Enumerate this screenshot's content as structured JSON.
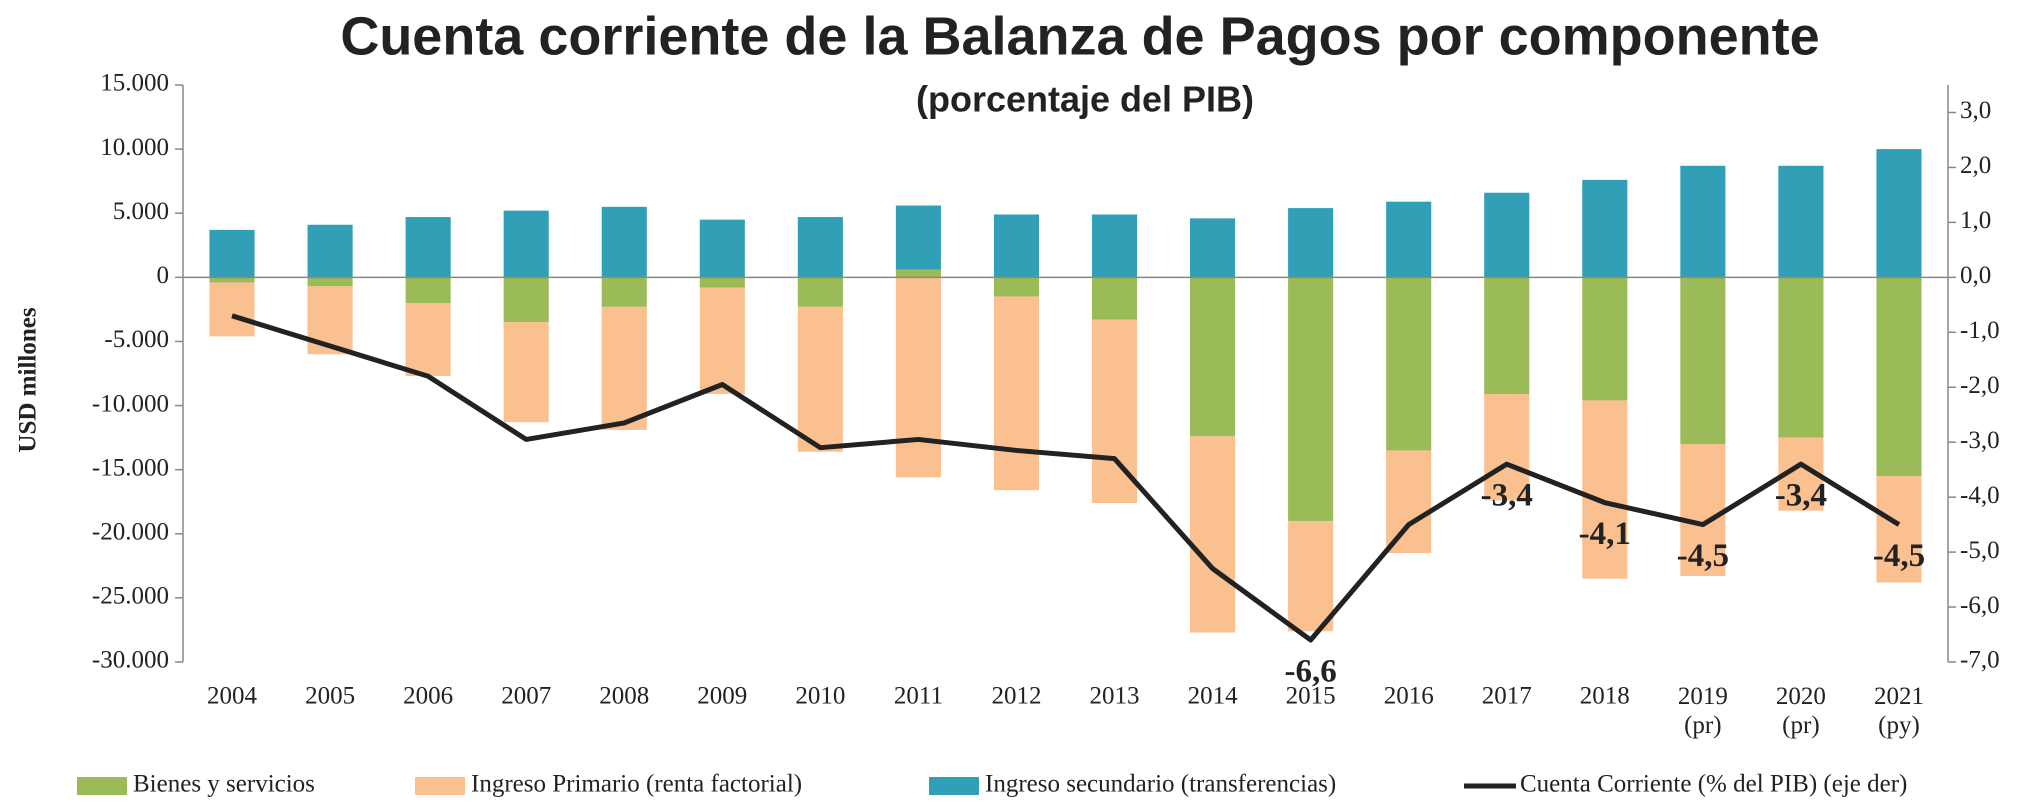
{
  "chart_data": {
    "type": "bar",
    "title": "Cuenta corriente de la Balanza de Pagos por componente",
    "subtitle": "(porcentaje del PIB)",
    "y_label": "USD millones",
    "categories": [
      "2004",
      "2005",
      "2006",
      "2007",
      "2008",
      "2009",
      "2010",
      "2011",
      "2012",
      "2013",
      "2014",
      "2015",
      "2016",
      "2017",
      "2018",
      "2019\n(pr)",
      "2020\n(pr)",
      "2021\n(py)"
    ],
    "stacked": true,
    "series": [
      {
        "name": "Bienes y servicios",
        "color": "#9bbb59",
        "values": [
          -400,
          -700,
          -2000,
          -3500,
          -2300,
          -800,
          -2300,
          600,
          -1500,
          -3300,
          -12400,
          -19000,
          -13500,
          -9100,
          -9600,
          -13000,
          -12500,
          -15500
        ]
      },
      {
        "name": "Ingreso Primario (renta factorial)",
        "color": "#fac090",
        "values": [
          -4200,
          -5300,
          -5700,
          -7800,
          -9600,
          -8300,
          -11300,
          -15600,
          -15100,
          -14300,
          -15300,
          -8600,
          -8000,
          -8300,
          -13900,
          -10300,
          -5700,
          -8300
        ]
      },
      {
        "name": "Ingreso secundario (transferencias)",
        "color": "#31a0b6",
        "values": [
          3700,
          4100,
          4700,
          5200,
          5500,
          4500,
          4700,
          5000,
          4900,
          4900,
          4600,
          5400,
          5900,
          6600,
          7600,
          8700,
          8700,
          10000
        ]
      },
      {
        "name": "Cuenta Corriente (% del PIB) (eje der)",
        "type": "line",
        "axis": "y2",
        "color": "#222222",
        "values": [
          -0.7,
          -1.25,
          -1.8,
          -2.95,
          -2.65,
          -1.95,
          -3.1,
          -2.95,
          -3.15,
          -3.3,
          -5.3,
          -6.6,
          -4.5,
          -3.4,
          -4.1,
          -4.5,
          -3.4,
          -4.5
        ],
        "value_labels": [
          null,
          null,
          null,
          null,
          null,
          null,
          null,
          null,
          null,
          null,
          null,
          "-6,6",
          null,
          "-3,4",
          "-4,1",
          "-4,5",
          "-3,4",
          "-4,5"
        ]
      }
    ],
    "ylim": [
      -30000,
      15000
    ],
    "yticks": [
      {
        "value": -30000,
        "label": "-30.000"
      },
      {
        "value": -25000,
        "label": "-25.000"
      },
      {
        "value": -20000,
        "label": "-20.000"
      },
      {
        "value": -15000,
        "label": "-15.000"
      },
      {
        "value": -10000,
        "label": "-10.000"
      },
      {
        "value": -5000,
        "label": "-5.000"
      },
      0,
      {
        "value": 5000,
        "label": "5.000"
      },
      {
        "value": 10000,
        "label": "10.000"
      },
      {
        "value": 15000,
        "label": "15.000"
      }
    ],
    "y2lim": [
      -7,
      3.5
    ],
    "y2ticks": [
      {
        "value": -7,
        "label": "-7,0"
      },
      {
        "value": -6,
        "label": "-6,0"
      },
      {
        "value": -5,
        "label": "-5,0"
      },
      {
        "value": -4,
        "label": "-4,0"
      },
      {
        "value": -3,
        "label": "-3,0"
      },
      {
        "value": -2,
        "label": "-2,0"
      },
      {
        "value": -1,
        "label": "-1,0"
      },
      {
        "value": 0,
        "label": "0,0"
      },
      {
        "value": 1,
        "label": "1,0"
      },
      {
        "value": 2,
        "label": "2,0"
      },
      {
        "value": 3,
        "label": "3,0"
      }
    ],
    "legend": "bottom"
  }
}
